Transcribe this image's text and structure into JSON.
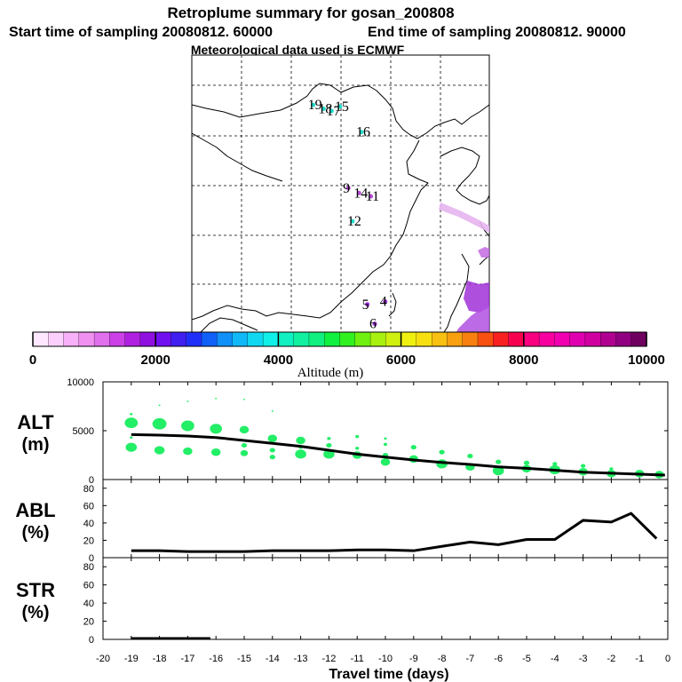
{
  "header": {
    "title": "Retroplume summary for gosan_200808",
    "start_time": "Start time of sampling 20080812. 60000",
    "end_time": "End time of sampling 20080812. 90000",
    "met_data": "Meteorological data used is ECMWF"
  },
  "map": {
    "markers": [
      {
        "label": "19",
        "lon": 40.8,
        "lat": 82.0,
        "color": "#22dccc"
      },
      {
        "label": "18",
        "lon": 44.3,
        "lat": 80.6,
        "color": "#22dccc"
      },
      {
        "label": "17",
        "lon": 47.0,
        "lat": 79.8,
        "color": "#22dccc"
      },
      {
        "label": "15",
        "lon": 49.8,
        "lat": 81.4,
        "color": "#22dccc"
      },
      {
        "label": "16",
        "lon": 57.0,
        "lat": 72.2,
        "color": "#22dccc"
      },
      {
        "label": "9",
        "lon": 52.6,
        "lat": 52.0,
        "color": "#b84cd8"
      },
      {
        "label": "14",
        "lon": 56.2,
        "lat": 50.2,
        "color": "#b84cd8"
      },
      {
        "label": "11",
        "lon": 60.2,
        "lat": 49.0,
        "color": "#b84cd8"
      },
      {
        "label": "12",
        "lon": 54.0,
        "lat": 40.0,
        "color": "#22dccc"
      },
      {
        "label": "4",
        "lon": 65.0,
        "lat": 11.0,
        "color": "#a030d8"
      },
      {
        "label": "5",
        "lon": 59.0,
        "lat": 10.0,
        "color": "#a030d8"
      },
      {
        "label": "6",
        "lon": 61.5,
        "lat": 3.0,
        "color": "#a030d8"
      }
    ]
  },
  "colorbar": {
    "title": "Altitude (m)",
    "ticks": [
      "0",
      "2000",
      "4000",
      "6000",
      "8000",
      "10000"
    ],
    "min": 0,
    "max": 10000,
    "colors": [
      "#ffe8ff",
      "#fcd0fc",
      "#f8b0f8",
      "#f090f0",
      "#e070ec",
      "#cc40e8",
      "#b020e0",
      "#9010e0",
      "#7010f0",
      "#4020f0",
      "#2030f8",
      "#1060f8",
      "#1090f8",
      "#10b8f8",
      "#10d8f0",
      "#10f0e8",
      "#10f0c0",
      "#10f0a0",
      "#10f080",
      "#10f040",
      "#30f020",
      "#70f010",
      "#a8f010",
      "#d0f010",
      "#f0f010",
      "#f8e010",
      "#f8c010",
      "#f8a010",
      "#f88010",
      "#f85010",
      "#f82020",
      "#f80050",
      "#f80080",
      "#f800a0",
      "#f000b0",
      "#e000b0",
      "#d000a0",
      "#b00090",
      "#900080",
      "#700060"
    ]
  },
  "chart_data": [
    {
      "type": "scatter",
      "name": "alt",
      "panel_label": [
        "ALT",
        "(m)"
      ],
      "xlabel": "Travel time (days)",
      "xlim": [
        -20,
        0
      ],
      "ylim": [
        0,
        10000
      ],
      "yticks": [
        "0",
        "5000",
        "10000"
      ],
      "xticks": [
        "-20",
        "-19",
        "-18",
        "-17",
        "-16",
        "-15",
        "-14",
        "-13",
        "-12",
        "-11",
        "-10",
        "-9",
        "-8",
        "-7",
        "-6",
        "-5",
        "-4",
        "-3",
        "-2",
        "-1",
        "0"
      ],
      "median_line": {
        "x": [
          -19,
          -18,
          -17,
          -16,
          -15,
          -14,
          -13,
          -12,
          -11,
          -10,
          -9,
          -8,
          -7,
          -6,
          -5,
          -4,
          -3,
          -2,
          -1,
          -0.1
        ],
        "y": [
          4600,
          4550,
          4450,
          4300,
          4000,
          3700,
          3400,
          3000,
          2600,
          2300,
          2000,
          1750,
          1550,
          1300,
          1150,
          950,
          750,
          650,
          550,
          450
        ]
      },
      "points": [
        {
          "x": -19,
          "y": 5800,
          "s": 7
        },
        {
          "x": -19,
          "y": 3300,
          "s": 6
        },
        {
          "x": -19,
          "y": 6700,
          "s": 1.5
        },
        {
          "x": -19,
          "y": 4300,
          "s": 1.5
        },
        {
          "x": -18,
          "y": 5700,
          "s": 7.5
        },
        {
          "x": -18,
          "y": 3000,
          "s": 5.5
        },
        {
          "x": -18,
          "y": 7600,
          "s": 1
        },
        {
          "x": -17,
          "y": 5500,
          "s": 7
        },
        {
          "x": -17,
          "y": 2900,
          "s": 5
        },
        {
          "x": -17,
          "y": 8000,
          "s": 1
        },
        {
          "x": -16,
          "y": 5200,
          "s": 6.5
        },
        {
          "x": -16,
          "y": 2800,
          "s": 5
        },
        {
          "x": -16,
          "y": 8300,
          "s": 1
        },
        {
          "x": -15,
          "y": 5100,
          "s": 5
        },
        {
          "x": -15,
          "y": 2700,
          "s": 4
        },
        {
          "x": -15,
          "y": 3500,
          "s": 3
        },
        {
          "x": -15,
          "y": 8200,
          "s": 1
        },
        {
          "x": -14,
          "y": 4200,
          "s": 5
        },
        {
          "x": -14,
          "y": 2300,
          "s": 3
        },
        {
          "x": -14,
          "y": 3000,
          "s": 3
        },
        {
          "x": -14,
          "y": 7000,
          "s": 1
        },
        {
          "x": -13,
          "y": 4000,
          "s": 5
        },
        {
          "x": -13,
          "y": 2600,
          "s": 6
        },
        {
          "x": -13,
          "y": 3300,
          "s": 2
        },
        {
          "x": -12,
          "y": 2600,
          "s": 6
        },
        {
          "x": -12,
          "y": 3500,
          "s": 3
        },
        {
          "x": -12,
          "y": 4200,
          "s": 2
        },
        {
          "x": -11,
          "y": 2500,
          "s": 5
        },
        {
          "x": -11,
          "y": 3200,
          "s": 2
        },
        {
          "x": -11,
          "y": 4400,
          "s": 2
        },
        {
          "x": -10,
          "y": 1800,
          "s": 5
        },
        {
          "x": -10,
          "y": 2500,
          "s": 3
        },
        {
          "x": -10,
          "y": 3600,
          "s": 2
        },
        {
          "x": -10,
          "y": 4200,
          "s": 1.5
        },
        {
          "x": -9,
          "y": 2100,
          "s": 5
        },
        {
          "x": -9,
          "y": 3300,
          "s": 3
        },
        {
          "x": -8,
          "y": 1600,
          "s": 6
        },
        {
          "x": -8,
          "y": 2800,
          "s": 3
        },
        {
          "x": -7,
          "y": 1300,
          "s": 5
        },
        {
          "x": -7,
          "y": 2400,
          "s": 3
        },
        {
          "x": -6,
          "y": 900,
          "s": 6
        },
        {
          "x": -6,
          "y": 1800,
          "s": 3
        },
        {
          "x": -5,
          "y": 1100,
          "s": 5
        },
        {
          "x": -5,
          "y": 1700,
          "s": 3
        },
        {
          "x": -4,
          "y": 1000,
          "s": 6
        },
        {
          "x": -4,
          "y": 1600,
          "s": 2.5
        },
        {
          "x": -3,
          "y": 800,
          "s": 5
        },
        {
          "x": -3,
          "y": 1400,
          "s": 2.5
        },
        {
          "x": -2,
          "y": 600,
          "s": 5
        },
        {
          "x": -2,
          "y": 1100,
          "s": 2
        },
        {
          "x": -1,
          "y": 600,
          "s": 5
        },
        {
          "x": -0.3,
          "y": 500,
          "s": 5
        }
      ],
      "point_color": "#22ee66"
    },
    {
      "type": "line",
      "name": "abl",
      "panel_label": [
        "ABL",
        "(%)"
      ],
      "xlim": [
        -20,
        0
      ],
      "ylim": [
        0,
        90
      ],
      "yticks": [
        "0",
        "20",
        "40",
        "60",
        "80"
      ],
      "series": [
        {
          "name": "ABL",
          "x": [
            -19,
            -18,
            -17,
            -16,
            -15,
            -14,
            -13,
            -12,
            -11,
            -10,
            -9,
            -8,
            -7,
            -6,
            -5,
            -4,
            -3,
            -2,
            -1.3,
            -0.4
          ],
          "y": [
            8,
            8,
            7,
            7,
            7,
            8,
            8,
            8,
            9,
            9,
            8,
            13,
            18,
            15,
            21,
            21,
            43,
            41,
            51,
            22
          ]
        }
      ]
    },
    {
      "type": "line",
      "name": "str",
      "panel_label": [
        "STR",
        "(%)"
      ],
      "xlim": [
        -20,
        0
      ],
      "ylim": [
        0,
        90
      ],
      "yticks": [
        "0",
        "20",
        "40",
        "60",
        "80"
      ],
      "series": [
        {
          "name": "STR",
          "x": [
            -19,
            -16.2
          ],
          "y": [
            1,
            1
          ]
        }
      ]
    }
  ]
}
